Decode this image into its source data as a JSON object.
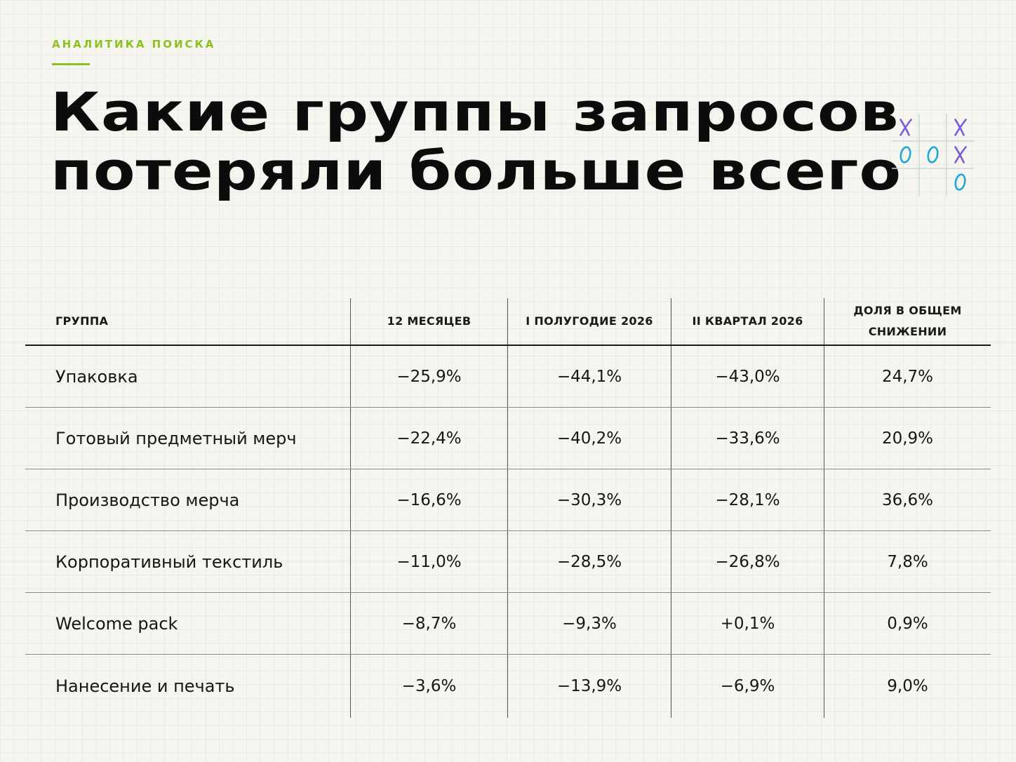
{
  "eyebrow": "АНАЛИТИКА ПОИСКА",
  "title": "Какие группы запросов потеряли больше всего",
  "accent_color": "#8cc21e",
  "decoration": {
    "icon": "tic-tac-toe-icon",
    "cells": [
      [
        "X",
        "",
        "X"
      ],
      [
        "O",
        "O",
        "X"
      ],
      [
        "",
        "",
        "O"
      ]
    ],
    "x_color": "#7b5cd6",
    "o_color": "#1ea9d9"
  },
  "table": {
    "headers": [
      "ГРУППА",
      "12 МЕСЯЦЕВ",
      "I ПОЛУГОДИЕ 2026",
      "II КВАРТАЛ 2026",
      "ДОЛЯ В ОБЩЕМ СНИЖЕНИИ"
    ],
    "rows": [
      [
        "Упаковка",
        "−25,9%",
        "−44,1%",
        "−43,0%",
        "24,7%"
      ],
      [
        "Готовый предметный мерч",
        "−22,4%",
        "−40,2%",
        "−33,6%",
        "20,9%"
      ],
      [
        "Производство мерча",
        "−16,6%",
        "−30,3%",
        "−28,1%",
        "36,6%"
      ],
      [
        "Корпоративный текстиль",
        "−11,0%",
        "−28,5%",
        "−26,8%",
        "7,8%"
      ],
      [
        "Welcome pack",
        "−8,7%",
        "−9,3%",
        "+0,1%",
        "0,9%"
      ],
      [
        "Нанесение и печать",
        "−3,6%",
        "−13,9%",
        "−6,9%",
        "9,0%"
      ]
    ]
  }
}
